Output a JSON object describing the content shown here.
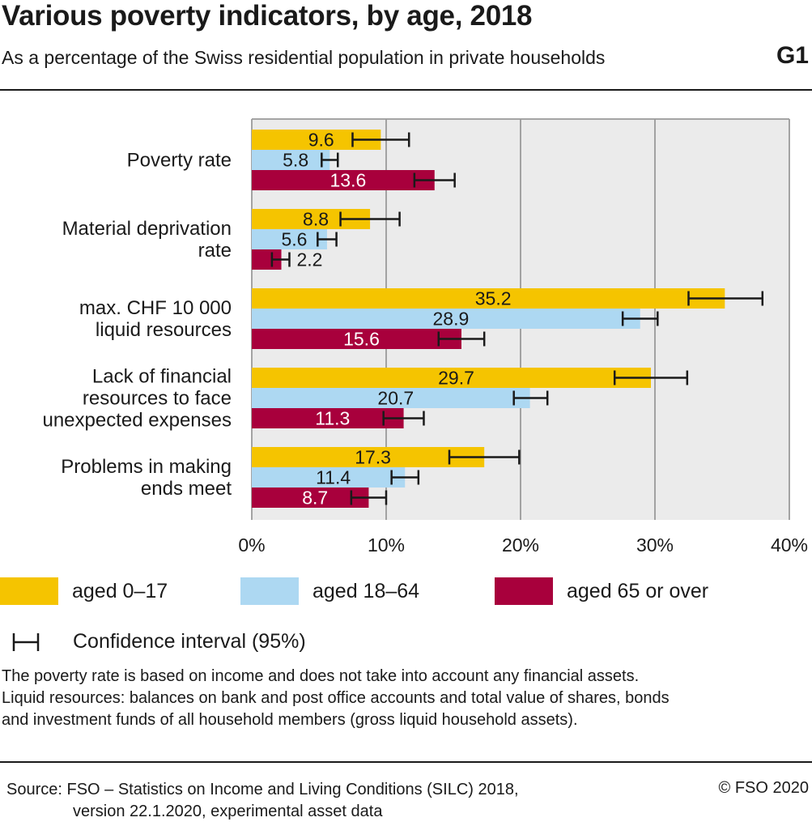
{
  "header": {
    "title": "Various poverty indicators, by age, 2018",
    "subtitle": "As a percentage of the Swiss residential population in private households",
    "graphic_id": "G1"
  },
  "colors": {
    "aged_0_17": "#f5c400",
    "aged_18_64": "#add8f2",
    "aged_65_over": "#a8003c",
    "plot_bg": "#ebebeb",
    "grid": "#9a9a9a"
  },
  "chart_data": {
    "type": "bar",
    "orientation": "horizontal",
    "categories": [
      [
        "Poverty rate"
      ],
      [
        "Material deprivation",
        "rate"
      ],
      [
        "max. CHF 10 000",
        "liquid resources"
      ],
      [
        "Lack of financial",
        "resources to face",
        "unexpected expenses"
      ],
      [
        "Problems in making",
        "ends meet"
      ]
    ],
    "series": [
      {
        "name": "aged 0–17",
        "values": [
          9.6,
          8.8,
          35.2,
          29.7,
          17.3
        ],
        "labels": [
          "9.6",
          "8.8",
          "35.2",
          "29.7",
          "17.3"
        ],
        "ci": [
          [
            7.5,
            11.7
          ],
          [
            6.6,
            11.0
          ],
          [
            32.5,
            38.0
          ],
          [
            27.0,
            32.4
          ],
          [
            14.7,
            19.9
          ]
        ]
      },
      {
        "name": "aged 18–64",
        "values": [
          5.8,
          5.6,
          28.9,
          20.7,
          11.4
        ],
        "labels": [
          "5.8",
          "5.6",
          "28.9",
          "20.7",
          "11.4"
        ],
        "ci": [
          [
            5.2,
            6.4
          ],
          [
            4.9,
            6.3
          ],
          [
            27.6,
            30.2
          ],
          [
            19.5,
            22.0
          ],
          [
            10.4,
            12.4
          ]
        ]
      },
      {
        "name": "aged 65 or over",
        "values": [
          13.6,
          2.2,
          15.6,
          11.3,
          8.7
        ],
        "labels": [
          "13.6",
          "2.2",
          "15.6",
          "11.3",
          "8.7"
        ],
        "ci": [
          [
            12.1,
            15.1
          ],
          [
            1.5,
            2.8
          ],
          [
            13.9,
            17.3
          ],
          [
            9.8,
            12.8
          ],
          [
            7.4,
            10.0
          ]
        ]
      }
    ],
    "xlim": [
      0,
      40
    ],
    "xticks": [
      0,
      10,
      20,
      30,
      40
    ],
    "xtick_labels": [
      "0%",
      "10%",
      "20%",
      "30%",
      "40%"
    ],
    "grid": true,
    "legend_position": "bottom",
    "ci_label": "Confidence interval (95%)"
  },
  "notes": [
    "The poverty rate is based on income and does not take into account any financial assets.",
    "Liquid resources: balances on bank and post office accounts and total value of shares, bonds",
    "and investment funds of all household members (gross liquid household assets)."
  ],
  "source": {
    "line1": "Source: FSO – Statistics on Income and Living Conditions (SILC) 2018,",
    "line2": "version 22.1.2020, experimental asset data"
  },
  "copyright": "© FSO 2020"
}
